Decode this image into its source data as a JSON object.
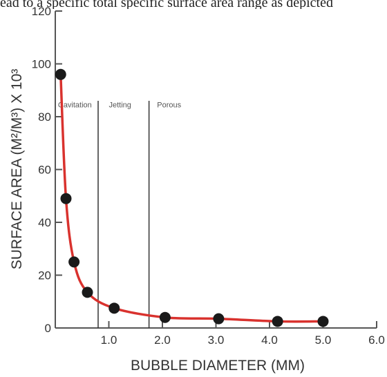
{
  "page": {
    "top_text": "ead to a specific total specific surface area range as depicted"
  },
  "chart_data": {
    "type": "line",
    "title": "",
    "xlabel": "BUBBLE DIAMETER (MM)",
    "ylabel": "SURFACE AREA (M²/M³) X 10³",
    "xlim": [
      0.0,
      6.0
    ],
    "ylim": [
      0,
      120
    ],
    "x_ticks": [
      1.0,
      2.0,
      3.0,
      4.0,
      5.0,
      6.0
    ],
    "x_tick_labels": [
      "1.0",
      "2.0",
      "3.0",
      "4.0",
      "5.0",
      "6.0"
    ],
    "y_ticks": [
      0,
      20,
      40,
      60,
      80,
      100,
      120
    ],
    "y_tick_labels": [
      "0",
      "20",
      "40",
      "60",
      "80",
      "100",
      "120"
    ],
    "grid": false,
    "colors": {
      "line": "#d9322e",
      "marker": "#1a1a1a",
      "axis": "#555555",
      "divider": "#333333"
    },
    "series": [
      {
        "x": [
          0.1,
          0.2,
          0.35,
          0.6,
          1.1,
          2.05,
          3.05,
          4.15,
          5.0
        ],
        "y": [
          96,
          49,
          25,
          13.5,
          7.5,
          4,
          3.5,
          2.5,
          2.5
        ]
      }
    ],
    "regions": [
      {
        "label": "Cavitation"
      },
      {
        "label": "Jetting"
      },
      {
        "label": "Porous"
      }
    ],
    "dividers": [
      0.8,
      1.75
    ]
  }
}
